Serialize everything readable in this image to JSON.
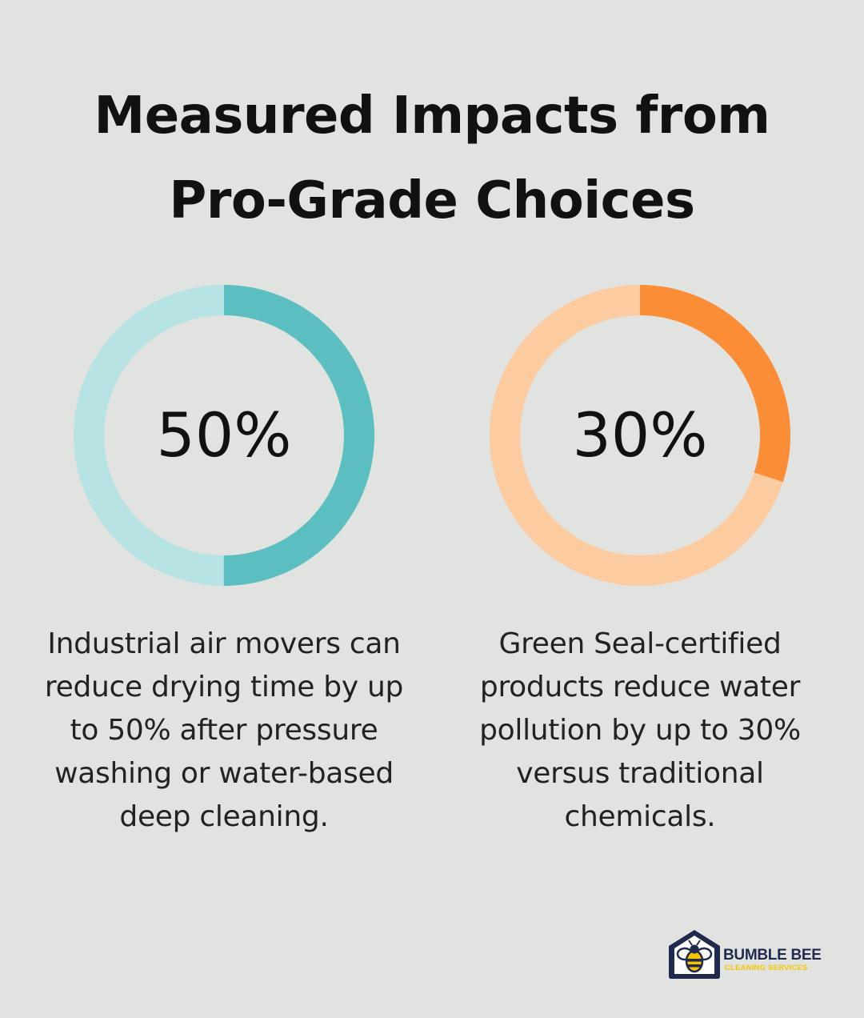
{
  "title": "Measured Impacts from\nPro-Grade Choices",
  "stats": [
    {
      "value_label": "50%",
      "fraction": 0.5,
      "description": "Industrial air movers can\nreduce drying time by up\nto 50% after pressure\nwashing or water-based\ndeep cleaning.",
      "track_color": "#b7e3e5",
      "fill_color": "#5bbec1"
    },
    {
      "value_label": "30%",
      "fraction": 0.3,
      "description": "Green Seal-certified\nproducts reduce water\npollution by up to 30%\nversus traditional\nchemicals.",
      "track_color": "#fdcba0",
      "fill_color": "#fb8d37"
    }
  ],
  "logo": {
    "brand": "BUMBLE BEE",
    "tagline": "CLEANING SERVICES",
    "primary_color": "#1f2a4e",
    "accent_color": "#f5c400",
    "icon": "bee-house-icon"
  },
  "background_color": "#e1e3e1"
}
